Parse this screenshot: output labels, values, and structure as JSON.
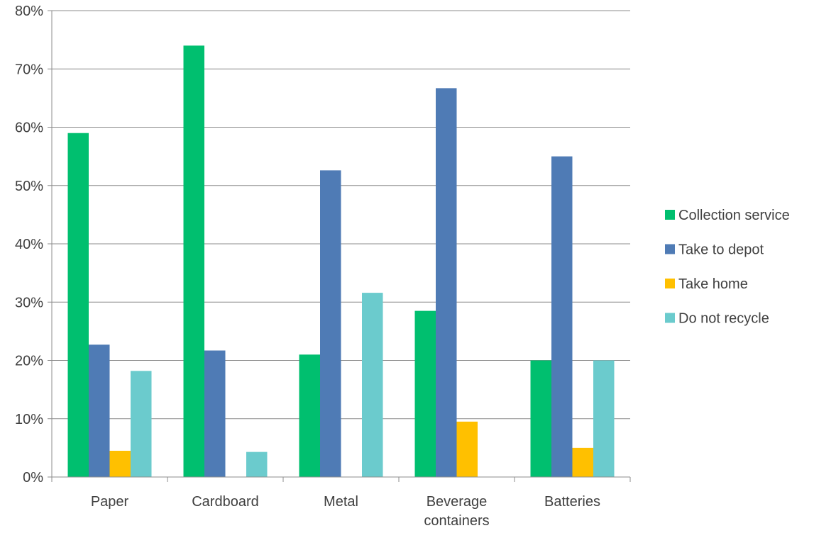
{
  "chart_data": {
    "type": "bar",
    "title": "",
    "xlabel": "",
    "ylabel": "",
    "categories": [
      "Paper",
      "Cardboard",
      "Metal",
      "Beverage containers",
      "Batteries"
    ],
    "category_label_lines": [
      [
        "Paper"
      ],
      [
        "Cardboard"
      ],
      [
        "Metal"
      ],
      [
        "Beverage",
        "containers"
      ],
      [
        "Batteries"
      ]
    ],
    "ylim": [
      0,
      0.8
    ],
    "y_ticks": [
      0,
      0.1,
      0.2,
      0.3,
      0.4,
      0.5,
      0.6,
      0.7,
      0.8
    ],
    "y_tick_labels": [
      "0%",
      "10%",
      "20%",
      "30%",
      "40%",
      "50%",
      "60%",
      "70%",
      "80%"
    ],
    "grid": true,
    "legend_position": "right",
    "series": [
      {
        "name": "Collection service",
        "color": "#00BF6F",
        "values": [
          0.59,
          0.74,
          0.21,
          0.285,
          0.2
        ]
      },
      {
        "name": "Take to depot",
        "color": "#4F7BB5",
        "values": [
          0.227,
          0.217,
          0.526,
          0.667,
          0.55
        ]
      },
      {
        "name": "Take home",
        "color": "#FFC000",
        "values": [
          0.045,
          0.0,
          0.0,
          0.095,
          0.05
        ]
      },
      {
        "name": "Do not recycle",
        "color": "#6BCBCD",
        "values": [
          0.182,
          0.043,
          0.316,
          0.0,
          0.2
        ]
      }
    ]
  }
}
